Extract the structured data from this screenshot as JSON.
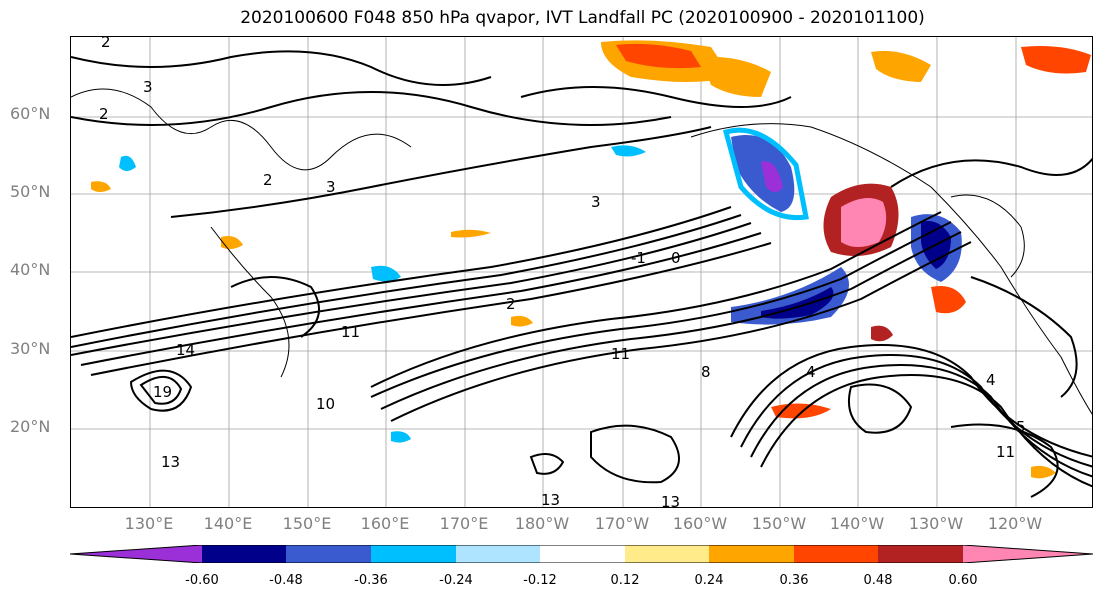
{
  "title": "2020100600 F048 850 hPa qvapor, IVT Landfall PC (2020100900 - 2020101100)",
  "lat_labels": [
    "60°N",
    "50°N",
    "40°N",
    "30°N",
    "20°N"
  ],
  "lon_labels": [
    "130°E",
    "140°E",
    "150°E",
    "160°E",
    "170°E",
    "180°W",
    "170°W",
    "160°W",
    "150°W",
    "140°W",
    "130°W",
    "120°W"
  ],
  "contour_labels": [
    "2",
    "3",
    "2",
    "2",
    "3",
    "3",
    "-1",
    "0",
    "2",
    "11",
    "14",
    "11",
    "19",
    "10",
    "13",
    "13",
    "13",
    "4",
    "4",
    "5",
    "11",
    "8"
  ],
  "colorbar": {
    "colors": [
      "#9b30d9",
      "#00008b",
      "#3a5bd0",
      "#00bfff",
      "#aee4ff",
      "#ffffff",
      "#ffeb8a",
      "#ffa500",
      "#ff4500",
      "#b22222",
      "#ff85b3"
    ],
    "ticks": [
      "-0.60",
      "-0.48",
      "-0.36",
      "-0.24",
      "-0.12",
      "0.12",
      "0.24",
      "0.36",
      "0.48",
      "0.60"
    ]
  }
}
